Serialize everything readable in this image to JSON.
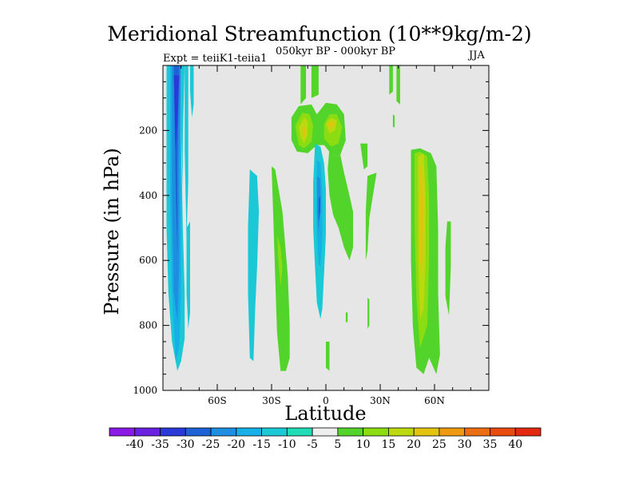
{
  "chart_data": {
    "type": "heatmap",
    "title": "Meridional Streamfunction (10**9kg/m-2)",
    "subtitle": "050kyr BP - 000kyr BP",
    "left_note": "Expt = teiiK1-teiia1",
    "right_note": "JJA",
    "xlabel": "Latitude",
    "ylabel": "Pressure (in hPa)",
    "x_ticks": [
      -60,
      -30,
      0,
      30,
      60
    ],
    "x_tick_labels": [
      "60S",
      "30S",
      "0",
      "30N",
      "60N"
    ],
    "y_ticks": [
      200,
      400,
      600,
      800,
      1000
    ],
    "y_tick_labels": [
      "200",
      "400",
      "600",
      "800",
      "1000"
    ],
    "xlim": [
      -90,
      90
    ],
    "ylim": [
      1000,
      0
    ],
    "background_color": "#e6e6e6",
    "colorbar": {
      "levels": [
        -40,
        -35,
        -30,
        -25,
        -20,
        -15,
        -10,
        -5,
        5,
        10,
        15,
        20,
        25,
        30,
        35,
        40
      ],
      "labels": [
        "-40",
        "-35",
        "-30",
        "-25",
        "-20",
        "-15",
        "-10",
        "-5",
        "5",
        "10",
        "15",
        "20",
        "25",
        "30",
        "35",
        "40"
      ],
      "colors": [
        "#8b1ae6",
        "#6a22e0",
        "#2a3ad8",
        "#1d63d6",
        "#1e8ee0",
        "#17b0e6",
        "#1bc8d6",
        "#22dcb8",
        "#eeeeee",
        "#52d42a",
        "#8cdc12",
        "#bcd80e",
        "#e2c410",
        "#ee9a12",
        "#ec6e12",
        "#e84a10",
        "#e42a0e"
      ]
    },
    "contours": [
      {
        "value": -5,
        "points": [
          [
            -88,
            0
          ],
          [
            -83,
            0
          ],
          [
            -83,
            80
          ],
          [
            -80,
            220
          ],
          [
            -79,
            500
          ],
          [
            -78,
            700
          ],
          [
            -78,
            840
          ],
          [
            -80,
            910
          ],
          [
            -82,
            940
          ],
          [
            -85,
            850
          ],
          [
            -87,
            700
          ],
          [
            -88,
            500
          ]
        ]
      },
      {
        "value": -10,
        "points": [
          [
            -86,
            0
          ],
          [
            -80,
            0
          ],
          [
            -80,
            300
          ],
          [
            -80,
            700
          ],
          [
            -81,
            870
          ],
          [
            -83,
            910
          ],
          [
            -85,
            700
          ],
          [
            -86,
            400
          ]
        ]
      },
      {
        "value": -15,
        "points": [
          [
            -85,
            0
          ],
          [
            -80,
            0
          ],
          [
            -81,
            300
          ],
          [
            -81,
            620
          ],
          [
            -82,
            790
          ],
          [
            -84,
            700
          ],
          [
            -85,
            400
          ]
        ]
      },
      {
        "value": -20,
        "points": [
          [
            -84,
            0
          ],
          [
            -81,
            0
          ],
          [
            -82,
            300
          ],
          [
            -82,
            590
          ],
          [
            -83,
            380
          ]
        ]
      },
      {
        "value": -25,
        "points": [
          [
            -84,
            30
          ],
          [
            -81,
            30
          ],
          [
            -82,
            170
          ],
          [
            -83,
            260
          ]
        ]
      },
      {
        "value": -5,
        "points": [
          [
            -80,
            0
          ],
          [
            -78,
            0
          ],
          [
            -79,
            210
          ],
          [
            -79,
            380
          ],
          [
            -80,
            200
          ]
        ]
      },
      {
        "value": -5,
        "points": [
          [
            -78,
            0
          ],
          [
            -76,
            0
          ],
          [
            -76,
            360
          ],
          [
            -77,
            530
          ],
          [
            -78,
            260
          ]
        ]
      },
      {
        "value": -5,
        "points": [
          [
            -75,
            0
          ],
          [
            -73,
            0
          ],
          [
            -73,
            120
          ],
          [
            -74,
            160
          ],
          [
            -75,
            80
          ]
        ]
      },
      {
        "value": -5,
        "points": [
          [
            -77,
            500
          ],
          [
            -75,
            480
          ],
          [
            -75,
            760
          ],
          [
            -76,
            810
          ],
          [
            -77,
            700
          ]
        ]
      },
      {
        "value": -5,
        "points": [
          [
            -42,
            320
          ],
          [
            -38,
            340
          ],
          [
            -37,
            450
          ],
          [
            -38,
            620
          ],
          [
            -39,
            740
          ],
          [
            -40,
            910
          ],
          [
            -42,
            900
          ],
          [
            -43,
            700
          ],
          [
            -43,
            500
          ]
        ]
      },
      {
        "value": 5,
        "points": [
          [
            -30,
            310
          ],
          [
            -28,
            320
          ],
          [
            -24,
            450
          ],
          [
            -21,
            650
          ],
          [
            -20,
            800
          ],
          [
            -20,
            900
          ],
          [
            -22,
            940
          ],
          [
            -25,
            940
          ],
          [
            -27,
            820
          ],
          [
            -28,
            650
          ],
          [
            -29,
            480
          ]
        ]
      },
      {
        "value": 10,
        "points": [
          [
            -27,
            520
          ],
          [
            -25,
            560
          ],
          [
            -24,
            620
          ],
          [
            -25,
            680
          ],
          [
            -26,
            620
          ]
        ]
      },
      {
        "value": 5,
        "points": [
          [
            -14,
            0
          ],
          [
            -11,
            0
          ],
          [
            -11,
            100
          ],
          [
            -14,
            120
          ]
        ]
      },
      {
        "value": 5,
        "points": [
          [
            -19,
            160
          ],
          [
            -15,
            125
          ],
          [
            -8,
            120
          ],
          [
            -5,
            150
          ],
          [
            0,
            115
          ],
          [
            6,
            120
          ],
          [
            10,
            150
          ],
          [
            11,
            230
          ],
          [
            8,
            275
          ],
          [
            4,
            280
          ],
          [
            -1,
            245
          ],
          [
            -5,
            245
          ],
          [
            -10,
            270
          ],
          [
            -16,
            265
          ],
          [
            -19,
            230
          ]
        ]
      },
      {
        "value": 10,
        "points": [
          [
            -17,
            185
          ],
          [
            -13,
            145
          ],
          [
            -9,
            150
          ],
          [
            -7,
            185
          ],
          [
            -8,
            235
          ],
          [
            -12,
            255
          ],
          [
            -15,
            245
          ]
        ]
      },
      {
        "value": 15,
        "points": [
          [
            -15,
            190
          ],
          [
            -12,
            160
          ],
          [
            -10,
            170
          ],
          [
            -10,
            210
          ],
          [
            -12,
            240
          ],
          [
            -14,
            220
          ]
        ]
      },
      {
        "value": 20,
        "points": [
          [
            -13,
            200
          ],
          [
            -12,
            185
          ],
          [
            -11,
            205
          ],
          [
            -12,
            230
          ]
        ]
      },
      {
        "value": 10,
        "points": [
          [
            -1,
            180
          ],
          [
            2,
            150
          ],
          [
            6,
            150
          ],
          [
            9,
            190
          ],
          [
            7,
            240
          ],
          [
            3,
            250
          ],
          [
            -1,
            225
          ]
        ]
      },
      {
        "value": 15,
        "points": [
          [
            0,
            180
          ],
          [
            3,
            160
          ],
          [
            6,
            170
          ],
          [
            5,
            200
          ],
          [
            2,
            210
          ]
        ]
      },
      {
        "value": 20,
        "points": [
          [
            1,
            180
          ],
          [
            3,
            170
          ],
          [
            5,
            180
          ],
          [
            3,
            195
          ]
        ]
      },
      {
        "value": -5,
        "points": [
          [
            -6,
            240
          ],
          [
            -3,
            250
          ],
          [
            -1,
            300
          ],
          [
            0,
            380
          ],
          [
            0,
            520
          ],
          [
            -1,
            640
          ],
          [
            -2,
            750
          ],
          [
            -3,
            780
          ],
          [
            -5,
            730
          ],
          [
            -6,
            620
          ],
          [
            -7,
            500
          ],
          [
            -7,
            360
          ]
        ]
      },
      {
        "value": -10,
        "points": [
          [
            -5,
            290
          ],
          [
            -3,
            300
          ],
          [
            -2,
            390
          ],
          [
            -2,
            530
          ],
          [
            -3,
            620
          ],
          [
            -4,
            610
          ],
          [
            -5,
            510
          ],
          [
            -5,
            380
          ]
        ]
      },
      {
        "value": -15,
        "points": [
          [
            -5,
            340
          ],
          [
            -3,
            350
          ],
          [
            -3,
            430
          ],
          [
            -4,
            520
          ],
          [
            -5,
            450
          ]
        ]
      },
      {
        "value": -20,
        "points": [
          [
            -4,
            410
          ],
          [
            -3,
            400
          ],
          [
            -3,
            450
          ],
          [
            -4,
            480
          ]
        ]
      },
      {
        "value": 5,
        "points": [
          [
            2,
            250
          ],
          [
            4,
            280
          ],
          [
            8,
            275
          ],
          [
            10,
            330
          ],
          [
            13,
            400
          ],
          [
            15,
            450
          ],
          [
            15,
            560
          ],
          [
            13,
            600
          ],
          [
            10,
            560
          ],
          [
            7,
            500
          ],
          [
            4,
            460
          ],
          [
            2,
            400
          ],
          [
            1,
            320
          ]
        ]
      },
      {
        "value": 5,
        "points": [
          [
            -8,
            0
          ],
          [
            -4,
            0
          ],
          [
            -4,
            90
          ],
          [
            -8,
            100
          ]
        ]
      },
      {
        "value": 5,
        "points": [
          [
            0,
            850
          ],
          [
            2,
            850
          ],
          [
            2,
            940
          ],
          [
            0,
            930
          ]
        ]
      },
      {
        "value": 5,
        "points": [
          [
            11,
            760
          ],
          [
            12,
            760
          ],
          [
            12,
            790
          ],
          [
            11,
            790
          ]
        ]
      },
      {
        "value": 5,
        "points": [
          [
            19,
            240
          ],
          [
            23,
            240
          ],
          [
            23,
            310
          ],
          [
            21,
            320
          ]
        ]
      },
      {
        "value": 5,
        "points": [
          [
            23,
            340
          ],
          [
            28,
            330
          ],
          [
            26,
            400
          ],
          [
            24,
            470
          ],
          [
            23,
            570
          ],
          [
            22,
            600
          ],
          [
            22,
            450
          ]
        ]
      },
      {
        "value": 5,
        "points": [
          [
            23,
            715
          ],
          [
            24,
            720
          ],
          [
            24,
            800
          ],
          [
            23,
            810
          ]
        ]
      },
      {
        "value": 5,
        "points": [
          [
            35,
            0
          ],
          [
            37,
            0
          ],
          [
            37,
            80
          ],
          [
            35,
            90
          ]
        ]
      },
      {
        "value": 5,
        "points": [
          [
            37,
            150
          ],
          [
            38,
            155
          ],
          [
            38,
            190
          ],
          [
            37,
            190
          ]
        ]
      },
      {
        "value": 5,
        "points": [
          [
            39,
            0
          ],
          [
            41,
            0
          ],
          [
            41,
            120
          ],
          [
            39,
            110
          ]
        ]
      },
      {
        "value": 5,
        "points": [
          [
            47,
            260
          ],
          [
            52,
            255
          ],
          [
            58,
            270
          ],
          [
            61,
            310
          ],
          [
            62,
            500
          ],
          [
            62,
            700
          ],
          [
            63,
            890
          ],
          [
            61,
            950
          ],
          [
            57,
            900
          ],
          [
            54,
            950
          ],
          [
            50,
            930
          ],
          [
            48,
            800
          ],
          [
            47,
            600
          ],
          [
            47,
            400
          ]
        ]
      },
      {
        "value": 10,
        "points": [
          [
            49,
            270
          ],
          [
            52,
            265
          ],
          [
            56,
            280
          ],
          [
            57,
            400
          ],
          [
            57,
            600
          ],
          [
            56,
            800
          ],
          [
            52,
            870
          ],
          [
            50,
            720
          ],
          [
            49,
            500
          ]
        ]
      },
      {
        "value": 15,
        "points": [
          [
            51,
            280
          ],
          [
            54,
            270
          ],
          [
            55,
            400
          ],
          [
            55,
            600
          ],
          [
            54,
            750
          ],
          [
            52,
            780
          ],
          [
            51,
            600
          ],
          [
            51,
            400
          ]
        ]
      },
      {
        "value": 20,
        "points": [
          [
            52,
            310
          ],
          [
            53,
            310
          ],
          [
            54,
            450
          ],
          [
            53,
            650
          ],
          [
            52,
            600
          ]
        ]
      },
      {
        "value": 5,
        "points": [
          [
            67,
            480
          ],
          [
            69,
            480
          ],
          [
            69,
            620
          ],
          [
            68,
            770
          ],
          [
            66,
            710
          ],
          [
            66,
            560
          ]
        ]
      }
    ]
  }
}
